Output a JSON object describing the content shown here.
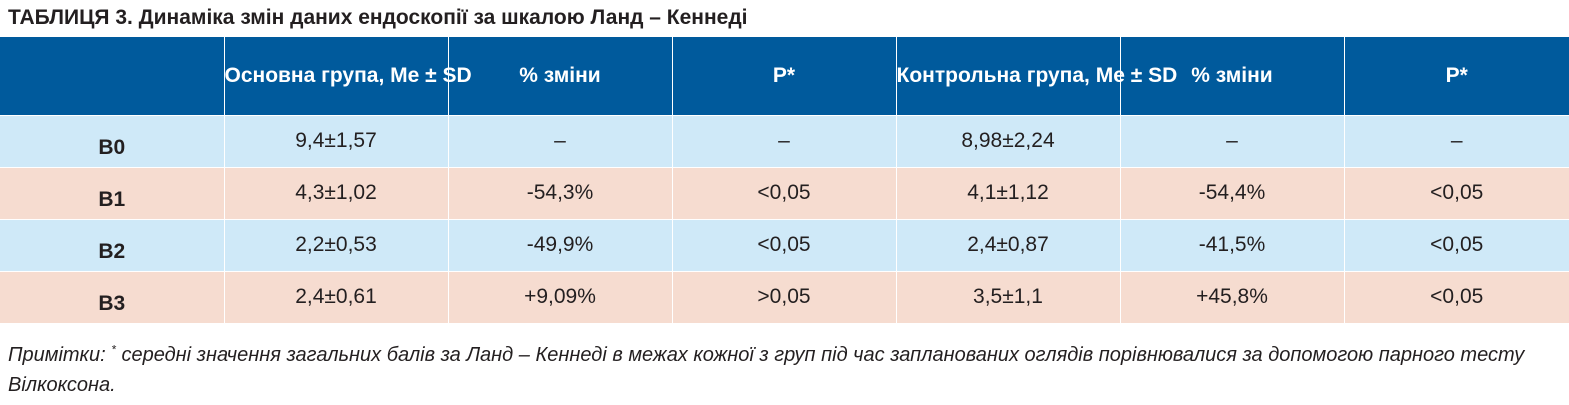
{
  "title": "ТАБЛИЦЯ 3. Динаміка змін даних ендоскопії за шкалою Ланд – Кеннеді",
  "table": {
    "headers": {
      "label": "",
      "main_group": "Основна група, Me ± SD",
      "main_change": "% зміни",
      "main_p": "P*",
      "control_group": "Контрольна група, Me ± SD",
      "control_change": "% зміни",
      "control_p": "P*"
    },
    "rows": [
      {
        "label": "B0",
        "main_group": "9,4±1,57",
        "main_change": "–",
        "main_p": "–",
        "control_group": "8,98±2,24",
        "control_change": "–",
        "control_p": "–"
      },
      {
        "label": "B1",
        "main_group": "4,3±1,02",
        "main_change": "-54,3%",
        "main_p": "<0,05",
        "control_group": "4,1±1,12",
        "control_change": "-54,4%",
        "control_p": "<0,05"
      },
      {
        "label": "B2",
        "main_group": "2,2±0,53",
        "main_change": "-49,9%",
        "main_p": "<0,05",
        "control_group": "2,4±0,87",
        "control_change": "-41,5%",
        "control_p": "<0,05"
      },
      {
        "label": "B3",
        "main_group": "2,4±0,61",
        "main_change": "+9,09%",
        "main_p": ">0,05",
        "control_group": "3,5±1,1",
        "control_change": "+45,8%",
        "control_p": "<0,05"
      }
    ]
  },
  "note": {
    "prefix": "Примітки: ",
    "marker": "*",
    "text": " середні значення загальних балів за Ланд – Кеннеді в межах кожної з груп під час запланованих оглядів порівнювалися за допомогою парного тесту Вілкоксона."
  },
  "colors": {
    "header_bg": "#005a9c",
    "row_blue": "#cfe9f8",
    "row_pink": "#f6dcd0",
    "text": "#231f20"
  }
}
